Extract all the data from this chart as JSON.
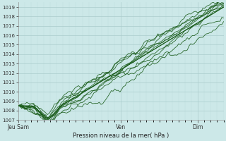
{
  "xlabel": "Pression niveau de la mer( hPa )",
  "ylim": [
    1007,
    1019.5
  ],
  "xlim": [
    0,
    96
  ],
  "yticks": [
    1007,
    1008,
    1009,
    1010,
    1011,
    1012,
    1013,
    1014,
    1015,
    1016,
    1017,
    1018,
    1019
  ],
  "xtick_positions": [
    0,
    48,
    84
  ],
  "xtick_labels": [
    "Jeu Sam",
    "Ven",
    "Dim"
  ],
  "bg_color": "#cce8e8",
  "grid_color_major": "#aacccc",
  "grid_color_minor": "#bbdddd",
  "line_color": "#1a5c1a",
  "n_points": 120
}
